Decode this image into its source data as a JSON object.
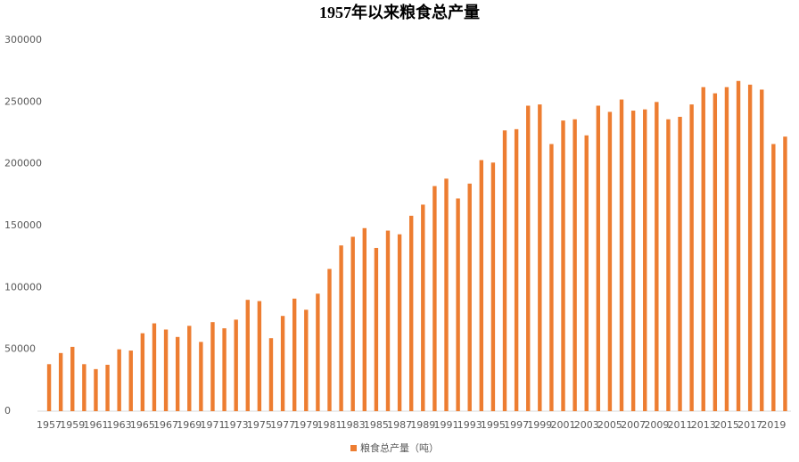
{
  "chart_data": {
    "type": "bar",
    "title": "1957年以来粮食总产量",
    "categories": [
      "1957",
      null,
      "1959",
      null,
      "1961",
      null,
      "1963",
      null,
      "1965",
      null,
      "1967",
      null,
      "1969",
      null,
      "1971",
      null,
      "1973",
      null,
      "1975",
      null,
      "1977",
      null,
      "1979",
      null,
      "1981",
      null,
      "1983",
      null,
      "1985",
      null,
      "1987",
      null,
      "1989",
      null,
      "1991",
      null,
      "1993",
      null,
      "1995",
      null,
      "1997",
      null,
      "1999",
      null,
      "2001",
      null,
      "2003",
      null,
      "2005",
      null,
      "2007",
      null,
      "2009",
      null,
      "2011",
      null,
      "2013",
      null,
      "2015",
      null,
      "2017",
      null,
      "2019",
      null
    ],
    "series": [
      {
        "name": "粮食总产量（吨）",
        "color": "#ed7d31",
        "values": [
          38000,
          47000,
          52000,
          38000,
          34000,
          37500,
          50000,
          49000,
          63000,
          71000,
          66000,
          60000,
          69000,
          56000,
          72000,
          67000,
          74000,
          90000,
          89000,
          59000,
          77000,
          91000,
          82000,
          95000,
          115000,
          134000,
          141000,
          148000,
          132000,
          146000,
          143000,
          158000,
          167000,
          182000,
          188000,
          172000,
          184000,
          203000,
          201000,
          227000,
          228000,
          247000,
          248000,
          216000,
          235000,
          236000,
          223000,
          247000,
          242000,
          252000,
          243000,
          244000,
          250000,
          236000,
          238000,
          248000,
          262000,
          257000,
          262000,
          267000,
          264000,
          260000,
          216000,
          222000
        ]
      }
    ],
    "ylim": [
      0,
      300000
    ],
    "yticks": [
      0,
      50000,
      100000,
      150000,
      200000,
      250000,
      300000
    ],
    "grid": false,
    "legend": "bottom"
  }
}
